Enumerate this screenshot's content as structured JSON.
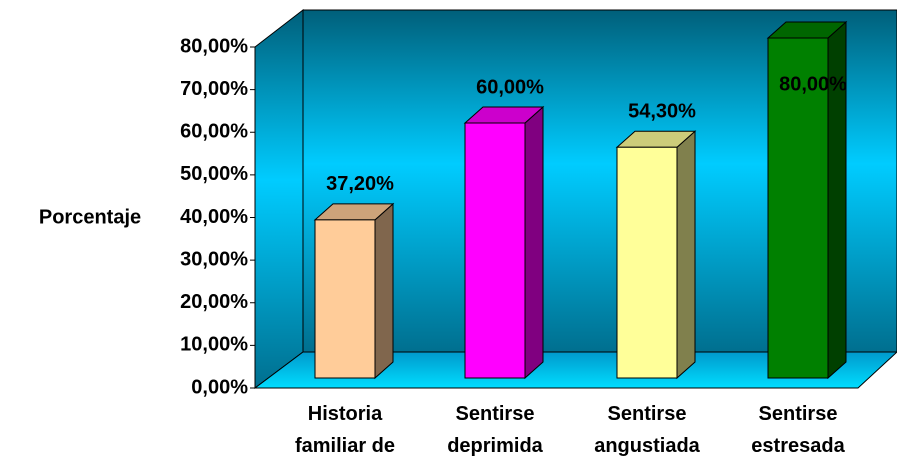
{
  "chart_data": {
    "type": "bar3d",
    "y_label": "Porcentaje",
    "categories": [
      "Historia familiar de",
      "Sentirse deprimida",
      "Sentirse angustiada",
      "Sentirse estresada"
    ],
    "values": [
      37.2,
      60,
      54.3,
      80
    ],
    "value_labels": [
      "37,20%",
      "60,00%",
      "54,30%",
      "80,00%"
    ],
    "colors": [
      "#ffcc99",
      "#ff00ff",
      "#ffff99",
      "#008000"
    ],
    "ylim": [
      0,
      80
    ],
    "yticks": [
      {
        "value": 0,
        "label": "0,00%"
      },
      {
        "value": 10,
        "label": "10,00%"
      },
      {
        "value": 20,
        "label": "20,00%"
      },
      {
        "value": 30,
        "label": "30,00%"
      },
      {
        "value": 40,
        "label": "40,00%"
      },
      {
        "value": 50,
        "label": "50,00%"
      },
      {
        "value": 60,
        "label": "60,00%"
      },
      {
        "value": 70,
        "label": "70,00%"
      },
      {
        "value": 80,
        "label": "80,00%"
      }
    ]
  }
}
